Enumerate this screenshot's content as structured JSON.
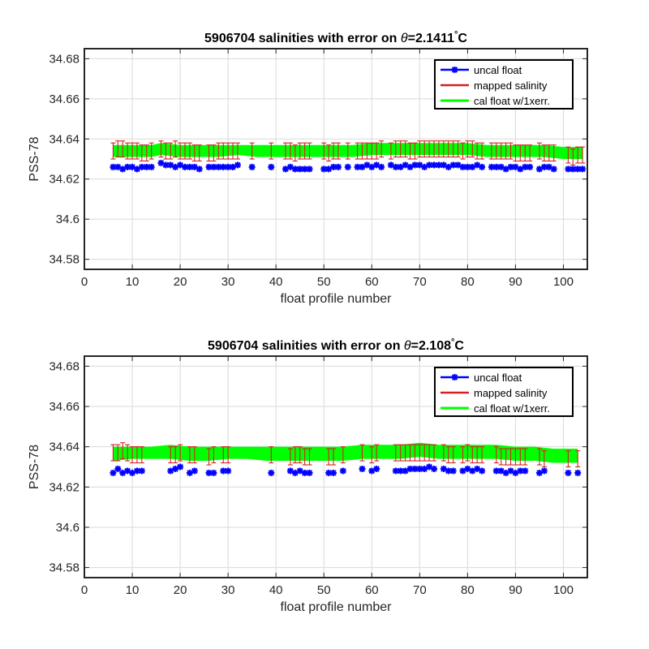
{
  "colors": {
    "uncal": "#0000ff",
    "mapped": "#d62020",
    "cal": "#00ff00",
    "grid": "#d9d9d9",
    "axis": "#262626"
  },
  "chart_data": [
    {
      "type": "scatter",
      "title_prefix": "5906704 salinities with error on ",
      "title_theta": "θ",
      "title_value": "=2.1411",
      "title_degree": "°",
      "title_unit": "C",
      "xlabel": "float profile number",
      "ylabel": "PSS-78",
      "xlim": [
        0,
        105
      ],
      "ylim": [
        34.575,
        34.685
      ],
      "xticks": [
        0,
        10,
        20,
        30,
        40,
        50,
        60,
        70,
        80,
        90,
        100
      ],
      "yticks": [
        34.58,
        34.6,
        34.62,
        34.64,
        34.66,
        34.68
      ],
      "ytick_labels": [
        "34.58",
        "34.6",
        "34.62",
        "34.64",
        "34.66",
        "34.68"
      ],
      "grid": true,
      "legend_position": "top-right",
      "legend": [
        "uncal float",
        "mapped salinity",
        "cal float w/1xerr."
      ],
      "uncal": {
        "x": [
          6,
          7,
          8,
          9,
          10,
          11,
          12,
          13,
          14,
          16,
          17,
          18,
          19,
          20,
          21,
          22,
          23,
          24,
          26,
          27,
          28,
          29,
          30,
          31,
          32,
          35,
          39,
          42,
          43,
          44,
          45,
          46,
          47,
          50,
          51,
          52,
          53,
          55,
          57,
          58,
          59,
          60,
          61,
          62,
          64,
          65,
          66,
          67,
          68,
          69,
          70,
          71,
          72,
          73,
          74,
          75,
          76,
          77,
          78,
          79,
          80,
          81,
          82,
          83,
          85,
          86,
          87,
          88,
          89,
          90,
          91,
          92,
          93,
          95,
          96,
          97,
          98,
          101,
          102,
          103,
          104
        ],
        "y": [
          34.626,
          34.626,
          34.625,
          34.626,
          34.626,
          34.625,
          34.626,
          34.626,
          34.626,
          34.628,
          34.627,
          34.627,
          34.626,
          34.627,
          34.626,
          34.626,
          34.626,
          34.625,
          34.626,
          34.626,
          34.626,
          34.626,
          34.626,
          34.626,
          34.627,
          34.626,
          34.626,
          34.625,
          34.626,
          34.625,
          34.625,
          34.625,
          34.625,
          34.625,
          34.625,
          34.626,
          34.626,
          34.626,
          34.626,
          34.626,
          34.627,
          34.626,
          34.627,
          34.626,
          34.627,
          34.626,
          34.626,
          34.627,
          34.626,
          34.627,
          34.627,
          34.626,
          34.627,
          34.627,
          34.627,
          34.627,
          34.626,
          34.627,
          34.627,
          34.626,
          34.626,
          34.626,
          34.627,
          34.626,
          34.626,
          34.626,
          34.626,
          34.625,
          34.626,
          34.626,
          34.625,
          34.626,
          34.626,
          34.625,
          34.626,
          34.626,
          34.625,
          34.625,
          34.625,
          34.625,
          34.625
        ]
      },
      "mapped": {
        "x": [
          6,
          7,
          8,
          9,
          10,
          11,
          12,
          13,
          14,
          16,
          17,
          18,
          19,
          20,
          21,
          22,
          23,
          24,
          26,
          27,
          28,
          29,
          30,
          31,
          32,
          35,
          39,
          42,
          43,
          44,
          45,
          46,
          47,
          50,
          51,
          52,
          53,
          55,
          57,
          58,
          59,
          60,
          61,
          62,
          64,
          65,
          66,
          67,
          68,
          69,
          70,
          71,
          72,
          73,
          74,
          75,
          76,
          77,
          78,
          79,
          80,
          81,
          82,
          83,
          85,
          86,
          87,
          88,
          89,
          90,
          91,
          92,
          93,
          95,
          96,
          97,
          98,
          101,
          102,
          103,
          104
        ],
        "y": [
          34.634,
          34.635,
          34.635,
          34.634,
          34.634,
          34.634,
          34.633,
          34.633,
          34.634,
          34.635,
          34.634,
          34.634,
          34.635,
          34.634,
          34.634,
          34.634,
          34.633,
          34.633,
          34.633,
          34.633,
          34.634,
          34.634,
          34.634,
          34.634,
          34.634,
          34.634,
          34.634,
          34.634,
          34.634,
          34.633,
          34.634,
          34.634,
          34.634,
          34.634,
          34.633,
          34.634,
          34.634,
          34.634,
          34.634,
          34.634,
          34.634,
          34.634,
          34.634,
          34.635,
          34.634,
          34.635,
          34.635,
          34.635,
          34.634,
          34.634,
          34.635,
          34.635,
          34.635,
          34.635,
          34.635,
          34.635,
          34.635,
          34.635,
          34.635,
          34.634,
          34.635,
          34.635,
          34.634,
          34.634,
          34.634,
          34.634,
          34.634,
          34.634,
          34.634,
          34.633,
          34.633,
          34.633,
          34.633,
          34.634,
          34.633,
          34.633,
          34.633,
          34.632,
          34.631,
          34.632,
          34.632
        ],
        "err": 0.004
      },
      "cal_band": {
        "x": [
          6,
          10,
          14,
          16,
          20,
          24,
          28,
          32,
          36,
          40,
          44,
          48,
          52,
          56,
          60,
          64,
          68,
          72,
          76,
          80,
          84,
          88,
          92,
          96,
          100,
          104
        ],
        "lower": [
          34.631,
          34.631,
          34.631,
          34.632,
          34.631,
          34.631,
          34.631,
          34.632,
          34.631,
          34.631,
          34.631,
          34.631,
          34.631,
          34.631,
          34.632,
          34.632,
          34.632,
          34.632,
          34.632,
          34.632,
          34.631,
          34.631,
          34.631,
          34.631,
          34.63,
          34.63
        ],
        "upper": [
          34.637,
          34.637,
          34.637,
          34.638,
          34.637,
          34.637,
          34.637,
          34.637,
          34.637,
          34.637,
          34.637,
          34.637,
          34.637,
          34.637,
          34.638,
          34.638,
          34.638,
          34.638,
          34.638,
          34.638,
          34.637,
          34.637,
          34.637,
          34.637,
          34.636,
          34.636
        ]
      }
    },
    {
      "type": "scatter",
      "title_prefix": "5906704 salinities with error on ",
      "title_theta": "θ",
      "title_value": "=2.108",
      "title_degree": "°",
      "title_unit": "C",
      "xlabel": "float profile number",
      "ylabel": "PSS-78",
      "xlim": [
        0,
        105
      ],
      "ylim": [
        34.575,
        34.685
      ],
      "xticks": [
        0,
        10,
        20,
        30,
        40,
        50,
        60,
        70,
        80,
        90,
        100
      ],
      "yticks": [
        34.58,
        34.6,
        34.62,
        34.64,
        34.66,
        34.68
      ],
      "ytick_labels": [
        "34.58",
        "34.6",
        "34.62",
        "34.64",
        "34.66",
        "34.68"
      ],
      "grid": true,
      "legend_position": "top-right",
      "legend": [
        "uncal float",
        "mapped salinity",
        "cal float w/1xerr."
      ],
      "uncal": {
        "x": [
          6,
          7,
          8,
          9,
          10,
          11,
          12,
          18,
          19,
          20,
          22,
          23,
          26,
          27,
          29,
          30,
          39,
          43,
          44,
          45,
          46,
          47,
          51,
          52,
          54,
          58,
          60,
          61,
          65,
          66,
          67,
          68,
          69,
          70,
          71,
          72,
          73,
          75,
          76,
          77,
          79,
          80,
          81,
          82,
          83,
          86,
          87,
          88,
          89,
          90,
          91,
          92,
          95,
          96,
          101,
          103
        ],
        "y": [
          34.627,
          34.629,
          34.627,
          34.628,
          34.627,
          34.628,
          34.628,
          34.628,
          34.629,
          34.63,
          34.627,
          34.628,
          34.627,
          34.627,
          34.628,
          34.628,
          34.627,
          34.628,
          34.627,
          34.628,
          34.627,
          34.627,
          34.627,
          34.627,
          34.628,
          34.629,
          34.628,
          34.629,
          34.628,
          34.628,
          34.628,
          34.629,
          34.629,
          34.629,
          34.629,
          34.63,
          34.629,
          34.629,
          34.628,
          34.628,
          34.628,
          34.629,
          34.628,
          34.629,
          34.628,
          34.628,
          34.628,
          34.627,
          34.628,
          34.627,
          34.628,
          34.628,
          34.627,
          34.628,
          34.627,
          34.627
        ]
      },
      "mapped": {
        "x": [
          6,
          7,
          8,
          9,
          10,
          11,
          12,
          18,
          19,
          20,
          22,
          23,
          26,
          27,
          29,
          30,
          39,
          43,
          44,
          45,
          46,
          47,
          51,
          52,
          54,
          58,
          60,
          61,
          65,
          66,
          67,
          68,
          69,
          70,
          71,
          72,
          73,
          75,
          76,
          77,
          79,
          80,
          81,
          82,
          83,
          86,
          87,
          88,
          89,
          90,
          91,
          92,
          95,
          96,
          101,
          103
        ],
        "y": [
          34.637,
          34.637,
          34.638,
          34.637,
          34.636,
          34.636,
          34.636,
          34.636,
          34.636,
          34.637,
          34.636,
          34.636,
          34.635,
          34.636,
          34.636,
          34.636,
          34.636,
          34.635,
          34.636,
          34.636,
          34.635,
          34.635,
          34.635,
          34.635,
          34.636,
          34.637,
          34.636,
          34.637,
          34.637,
          34.637,
          34.637,
          34.637,
          34.637,
          34.637,
          34.637,
          34.637,
          34.637,
          34.637,
          34.636,
          34.636,
          34.636,
          34.637,
          34.636,
          34.636,
          34.636,
          34.636,
          34.635,
          34.635,
          34.635,
          34.635,
          34.635,
          34.635,
          34.635,
          34.634,
          34.634,
          34.634
        ],
        "err": 0.004
      },
      "cal_band": {
        "x": [
          6,
          10,
          14,
          18,
          22,
          26,
          30,
          34,
          38,
          42,
          46,
          50,
          54,
          58,
          62,
          66,
          70,
          74,
          78,
          82,
          86,
          90,
          94,
          98,
          103
        ],
        "lower": [
          34.633,
          34.634,
          34.634,
          34.634,
          34.633,
          34.633,
          34.634,
          34.634,
          34.633,
          34.633,
          34.633,
          34.633,
          34.633,
          34.634,
          34.634,
          34.634,
          34.635,
          34.634,
          34.634,
          34.634,
          34.634,
          34.633,
          34.633,
          34.632,
          34.632
        ],
        "upper": [
          34.64,
          34.64,
          34.64,
          34.641,
          34.64,
          34.64,
          34.64,
          34.64,
          34.64,
          34.64,
          34.64,
          34.64,
          34.64,
          34.641,
          34.641,
          34.641,
          34.642,
          34.641,
          34.641,
          34.641,
          34.641,
          34.64,
          34.64,
          34.639,
          34.639
        ]
      }
    }
  ]
}
